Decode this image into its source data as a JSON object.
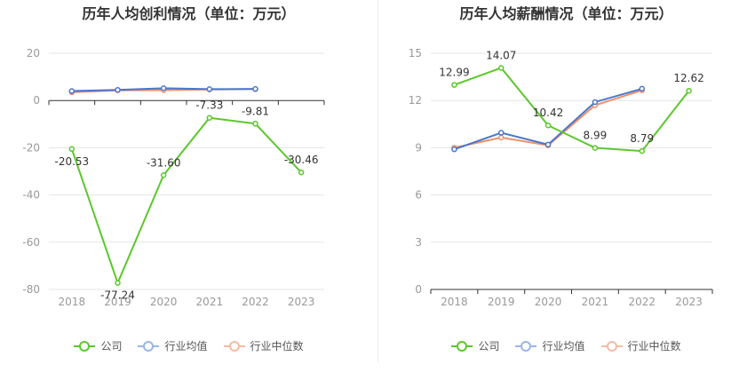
{
  "colors": {
    "公司": "#5cc72c",
    "行业均值": "#4a77cc",
    "行业中位数": "#f0906a",
    "grid": "#e6e6e6",
    "axis": "#333333",
    "tick_text": "#999999",
    "label_text": "#333333"
  },
  "chart_data": [
    {
      "type": "line",
      "title": "历年人均创利情况（单位：万元）",
      "categories": [
        "2018",
        "2019",
        "2020",
        "2021",
        "2022",
        "2023"
      ],
      "ylim": [
        -80,
        20
      ],
      "yticks": [
        20,
        0,
        -20,
        -40,
        -60,
        -80
      ],
      "grid": true,
      "legend_position": "bottom",
      "series": [
        {
          "name": "公司",
          "values": [
            -20.53,
            -77.24,
            -31.6,
            -7.33,
            -9.81,
            -30.46
          ],
          "labels": [
            "-20.53",
            "-77.24",
            "-31.60",
            "-7.33",
            "-9.81",
            "-30.46"
          ]
        },
        {
          "name": "行业均值",
          "values": [
            4.0,
            4.5,
            5.2,
            4.8,
            4.9,
            null
          ]
        },
        {
          "name": "行业中位数",
          "values": [
            3.5,
            4.3,
            4.4,
            4.7,
            4.8,
            null
          ]
        }
      ]
    },
    {
      "type": "line",
      "title": "历年人均薪酬情况（单位：万元）",
      "categories": [
        "2018",
        "2019",
        "2020",
        "2021",
        "2022",
        "2023"
      ],
      "ylim": [
        0,
        15
      ],
      "yticks": [
        15,
        12,
        9,
        6,
        3,
        0
      ],
      "grid": true,
      "legend_position": "bottom",
      "series": [
        {
          "name": "公司",
          "values": [
            12.99,
            14.07,
            10.42,
            8.99,
            8.79,
            12.62
          ],
          "labels": [
            "12.99",
            "14.07",
            "10.42",
            "8.99",
            "8.79",
            "12.62"
          ]
        },
        {
          "name": "行业均值",
          "values": [
            8.9,
            9.95,
            9.2,
            11.9,
            12.75,
            null
          ]
        },
        {
          "name": "行业中位数",
          "values": [
            9.0,
            9.65,
            9.15,
            11.7,
            12.65,
            null
          ]
        }
      ]
    }
  ]
}
